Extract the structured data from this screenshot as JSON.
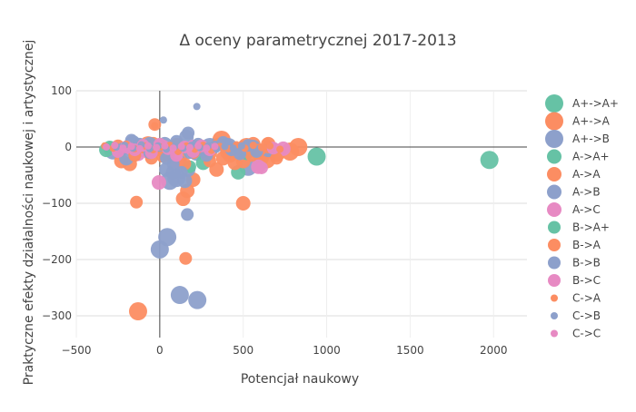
{
  "chart_data": {
    "type": "scatter",
    "title": "Δ oceny parametrycznej 2017-2013",
    "xlabel": "Potencjał naukowy",
    "ylabel": "Praktyczne efekty działalności naukowej i artystycznej",
    "xlim": [
      -500,
      2200
    ],
    "ylim": [
      -350,
      100
    ],
    "xticks": [
      -500,
      0,
      500,
      1000,
      1500,
      2000
    ],
    "yticks": [
      -300,
      -200,
      -100,
      0,
      100
    ],
    "grid": true,
    "legend_position": "right",
    "series": [
      {
        "name": "A+->A+",
        "color": "#66c2a5",
        "size": "large",
        "points": [
          [
            940,
            -17
          ],
          [
            1975,
            -23
          ]
        ]
      },
      {
        "name": "A+->A",
        "color": "#fc8d62",
        "size": "large",
        "points": [
          [
            -130,
            -292
          ],
          [
            370,
            13
          ],
          [
            520,
            0
          ],
          [
            600,
            -10
          ],
          [
            640,
            -22
          ],
          [
            700,
            -10
          ],
          [
            780,
            -8
          ],
          [
            830,
            0
          ],
          [
            240,
            -5
          ],
          [
            -70,
            3
          ]
        ]
      },
      {
        "name": "A+->B",
        "color": "#8da0cb",
        "size": "large",
        "points": [
          [
            120,
            -263
          ],
          [
            225,
            -272
          ],
          [
            0,
            -182
          ],
          [
            45,
            -160
          ],
          [
            -280,
            -6
          ],
          [
            60,
            -60
          ],
          [
            100,
            -55
          ],
          [
            300,
            0
          ],
          [
            410,
            0
          ],
          [
            530,
            -35
          ],
          [
            220,
            -8
          ]
        ]
      },
      {
        "name": "A->A+",
        "color": "#66c2a5",
        "size": "medium",
        "points": [
          [
            470,
            -45
          ],
          [
            -320,
            -5
          ],
          [
            260,
            -28
          ]
        ]
      },
      {
        "name": "A->A",
        "color": "#fc8d62",
        "size": "medium",
        "points": [
          [
            140,
            -92
          ],
          [
            165,
            -78
          ],
          [
            200,
            -58
          ],
          [
            500,
            -100
          ],
          [
            -230,
            -25
          ],
          [
            -180,
            -30
          ],
          [
            340,
            -40
          ],
          [
            420,
            -15
          ],
          [
            560,
            5
          ],
          [
            650,
            5
          ],
          [
            610,
            -20
          ],
          [
            20,
            -15
          ],
          [
            60,
            -5
          ],
          [
            120,
            -20
          ],
          [
            -100,
            -5
          ],
          [
            -40,
            5
          ],
          [
            300,
            -10
          ],
          [
            380,
            -20
          ],
          [
            450,
            -28
          ],
          [
            500,
            -25
          ],
          [
            230,
            0
          ]
        ]
      },
      {
        "name": "A->B",
        "color": "#8da0cb",
        "size": "medium",
        "points": [
          [
            40,
            -40
          ],
          [
            80,
            -45
          ],
          [
            120,
            -28
          ],
          [
            150,
            -60
          ],
          [
            160,
            18
          ],
          [
            -200,
            -20
          ],
          [
            -160,
            8
          ],
          [
            -60,
            5
          ],
          [
            30,
            5
          ],
          [
            200,
            0
          ],
          [
            270,
            -5
          ],
          [
            400,
            3
          ],
          [
            480,
            -5
          ],
          [
            560,
            0
          ],
          [
            650,
            -5
          ],
          [
            90,
            -10
          ],
          [
            170,
            -40
          ]
        ]
      },
      {
        "name": "A->C",
        "color": "#e78ac3",
        "size": "medium",
        "points": [
          [
            -5,
            -63
          ],
          [
            -70,
            -8
          ],
          [
            20,
            0
          ],
          [
            740,
            -3
          ],
          [
            590,
            -35
          ],
          [
            -130,
            -12
          ],
          [
            -190,
            0
          ],
          [
            100,
            -25
          ],
          [
            200,
            0
          ]
        ]
      },
      {
        "name": "B->A+",
        "color": "#66c2a5",
        "size": "small",
        "points": [
          [
            -300,
            0
          ],
          [
            180,
            -35
          ],
          [
            520,
            -12
          ]
        ]
      },
      {
        "name": "B->A",
        "color": "#fc8d62",
        "size": "small",
        "points": [
          [
            -140,
            -98
          ],
          [
            155,
            -198
          ],
          [
            -30,
            40
          ],
          [
            -250,
            2
          ],
          [
            -150,
            -15
          ],
          [
            -100,
            0
          ],
          [
            -50,
            -20
          ],
          [
            0,
            -5
          ],
          [
            50,
            -15
          ],
          [
            100,
            5
          ],
          [
            150,
            -30
          ],
          [
            200,
            -10
          ],
          [
            250,
            0
          ],
          [
            300,
            -25
          ],
          [
            350,
            5
          ],
          [
            400,
            -10
          ],
          [
            450,
            -5
          ],
          [
            500,
            0
          ],
          [
            550,
            -15
          ],
          [
            600,
            -5
          ],
          [
            650,
            0
          ],
          [
            700,
            -20
          ]
        ]
      },
      {
        "name": "B->B",
        "color": "#8da0cb",
        "size": "small",
        "points": [
          [
            165,
            -120
          ],
          [
            170,
            25
          ],
          [
            -170,
            12
          ],
          [
            -220,
            -3
          ],
          [
            -120,
            5
          ],
          [
            -60,
            -10
          ],
          [
            0,
            3
          ],
          [
            40,
            -20
          ],
          [
            80,
            -30
          ],
          [
            130,
            -45
          ],
          [
            180,
            -10
          ],
          [
            230,
            5
          ],
          [
            280,
            -15
          ],
          [
            330,
            0
          ],
          [
            380,
            8
          ],
          [
            430,
            -5
          ],
          [
            480,
            -12
          ],
          [
            530,
            3
          ],
          [
            580,
            -8
          ],
          [
            100,
            10
          ]
        ]
      },
      {
        "name": "B->C",
        "color": "#e78ac3",
        "size": "small",
        "points": [
          [
            610,
            -37
          ],
          [
            -250,
            -8
          ],
          [
            -200,
            0
          ],
          [
            -150,
            -5
          ],
          [
            -100,
            3
          ],
          [
            -50,
            -10
          ],
          [
            0,
            5
          ],
          [
            50,
            -3
          ],
          [
            100,
            -15
          ],
          [
            150,
            0
          ],
          [
            200,
            -8
          ],
          [
            250,
            2
          ],
          [
            300,
            -5
          ],
          [
            680,
            -2
          ]
        ]
      },
      {
        "name": "C->A",
        "color": "#fc8d62",
        "size": "tiny",
        "points": [
          [
            -30,
            38
          ],
          [
            640,
            10
          ],
          [
            -330,
            2
          ],
          [
            -280,
            -2
          ],
          [
            -200,
            5
          ],
          [
            -150,
            -3
          ],
          [
            -90,
            2
          ],
          [
            -40,
            -5
          ],
          [
            10,
            0
          ],
          [
            60,
            3
          ],
          [
            110,
            -8
          ],
          [
            160,
            2
          ],
          [
            210,
            -4
          ],
          [
            260,
            3
          ],
          [
            310,
            -6
          ],
          [
            360,
            1
          ],
          [
            410,
            -3
          ],
          [
            460,
            4
          ],
          [
            510,
            -2
          ],
          [
            560,
            3
          ],
          [
            610,
            -1
          ],
          [
            660,
            2
          ],
          [
            720,
            -4
          ]
        ]
      },
      {
        "name": "C->B",
        "color": "#8da0cb",
        "size": "tiny",
        "points": [
          [
            22,
            48
          ],
          [
            222,
            72
          ],
          [
            -260,
            0
          ],
          [
            -210,
            3
          ],
          [
            -160,
            -2
          ],
          [
            -110,
            4
          ],
          [
            -60,
            -3
          ],
          [
            -10,
            2
          ],
          [
            40,
            -4
          ],
          [
            90,
            1
          ],
          [
            140,
            -2
          ],
          [
            190,
            3
          ],
          [
            240,
            -1
          ],
          [
            290,
            2
          ],
          [
            340,
            -3
          ],
          [
            390,
            1
          ],
          [
            440,
            -2
          ],
          [
            490,
            2
          ]
        ]
      },
      {
        "name": "C->C",
        "color": "#e78ac3",
        "size": "tiny",
        "points": [
          [
            -320,
            0
          ],
          [
            -270,
            3
          ],
          [
            -220,
            -2
          ],
          [
            -170,
            1
          ],
          [
            -120,
            -3
          ],
          [
            -70,
            2
          ],
          [
            -20,
            -1
          ],
          [
            30,
            2
          ],
          [
            80,
            -2
          ],
          [
            130,
            1
          ],
          [
            180,
            -1
          ],
          [
            230,
            2
          ],
          [
            280,
            -2
          ],
          [
            330,
            1
          ]
        ]
      }
    ]
  }
}
